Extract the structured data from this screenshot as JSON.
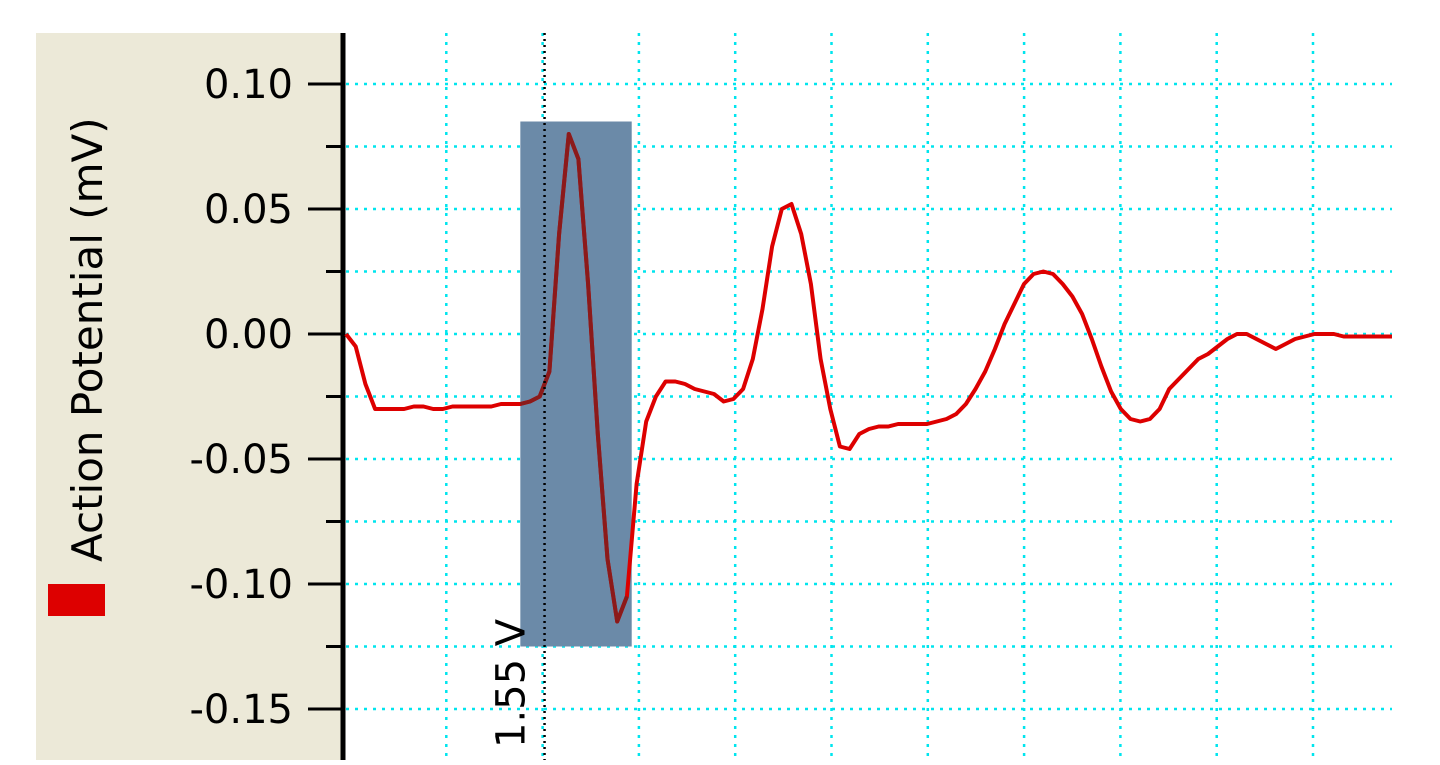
{
  "chart_data": {
    "type": "line",
    "ylabel": "Action Potential (mV)",
    "ylim": [
      -0.165,
      0.11
    ],
    "y_ticks": [
      "0.10",
      "0.05",
      "0.00",
      "-0.05",
      "-0.10",
      "-0.15"
    ],
    "y_tick_values": [
      0.1,
      0.05,
      0.0,
      -0.05,
      -0.1,
      -0.15
    ],
    "grid": true,
    "legend": "left (vertical, with ylabel)",
    "colors": {
      "series": "#dd0000",
      "highlight_trace": "#8b1a1a",
      "selection": "#6b8aa8",
      "grid": "#00e5ee",
      "axis": "#000000",
      "label_panel": "#ece9d8"
    },
    "series": [
      {
        "name": "Action Potential (mV)",
        "x": [
          0,
          2,
          4,
          6,
          8,
          10,
          12,
          14,
          16,
          18,
          20,
          22,
          24,
          26,
          28,
          30,
          32,
          34,
          36,
          38,
          40,
          42,
          44,
          46,
          48,
          50,
          52,
          54,
          56,
          58,
          60,
          62,
          64,
          66,
          68,
          70,
          72,
          74,
          76,
          78,
          80,
          82,
          84,
          86,
          88,
          90,
          92,
          94,
          96,
          98,
          100,
          102,
          104,
          106,
          108,
          110,
          112,
          114,
          116,
          118,
          120,
          122,
          124,
          126,
          128,
          130,
          132,
          134,
          136,
          138,
          140,
          142,
          144,
          146,
          148,
          150,
          152,
          154,
          156,
          158,
          160,
          162,
          164,
          166,
          168,
          170,
          172,
          174,
          176,
          178,
          180,
          182,
          184,
          186,
          188,
          190,
          192,
          194,
          196,
          198,
          200,
          202,
          204,
          206,
          208,
          210,
          212,
          214,
          216
        ],
        "y": [
          0.0,
          -0.005,
          -0.02,
          -0.03,
          -0.03,
          -0.03,
          -0.03,
          -0.029,
          -0.029,
          -0.03,
          -0.03,
          -0.029,
          -0.029,
          -0.029,
          -0.029,
          -0.029,
          -0.028,
          -0.028,
          -0.028,
          -0.027,
          -0.025,
          -0.015,
          0.04,
          0.08,
          0.07,
          0.02,
          -0.04,
          -0.09,
          -0.115,
          -0.105,
          -0.06,
          -0.035,
          -0.025,
          -0.019,
          -0.019,
          -0.02,
          -0.022,
          -0.023,
          -0.024,
          -0.027,
          -0.026,
          -0.022,
          -0.01,
          0.01,
          0.035,
          0.05,
          0.052,
          0.04,
          0.02,
          -0.01,
          -0.03,
          -0.045,
          -0.046,
          -0.04,
          -0.038,
          -0.037,
          -0.037,
          -0.036,
          -0.036,
          -0.036,
          -0.036,
          -0.035,
          -0.034,
          -0.032,
          -0.028,
          -0.022,
          -0.015,
          -0.006,
          0.004,
          0.012,
          0.02,
          0.024,
          0.025,
          0.024,
          0.02,
          0.015,
          0.008,
          -0.002,
          -0.013,
          -0.023,
          -0.03,
          -0.034,
          -0.035,
          -0.034,
          -0.03,
          -0.022,
          -0.018,
          -0.014,
          -0.01,
          -0.008,
          -0.005,
          -0.002,
          0.0,
          0.0,
          -0.002,
          -0.004,
          -0.006,
          -0.004,
          -0.002,
          -0.001,
          0.0,
          0.0,
          0.0,
          -0.001,
          -0.001,
          -0.001,
          -0.001,
          -0.001,
          -0.001
        ]
      }
    ],
    "cursor": {
      "label": "1.55 V",
      "x": 41
    },
    "selection": {
      "x_start": 36,
      "x_end": 59,
      "y_top": 0.085,
      "y_bottom": -0.125
    }
  }
}
